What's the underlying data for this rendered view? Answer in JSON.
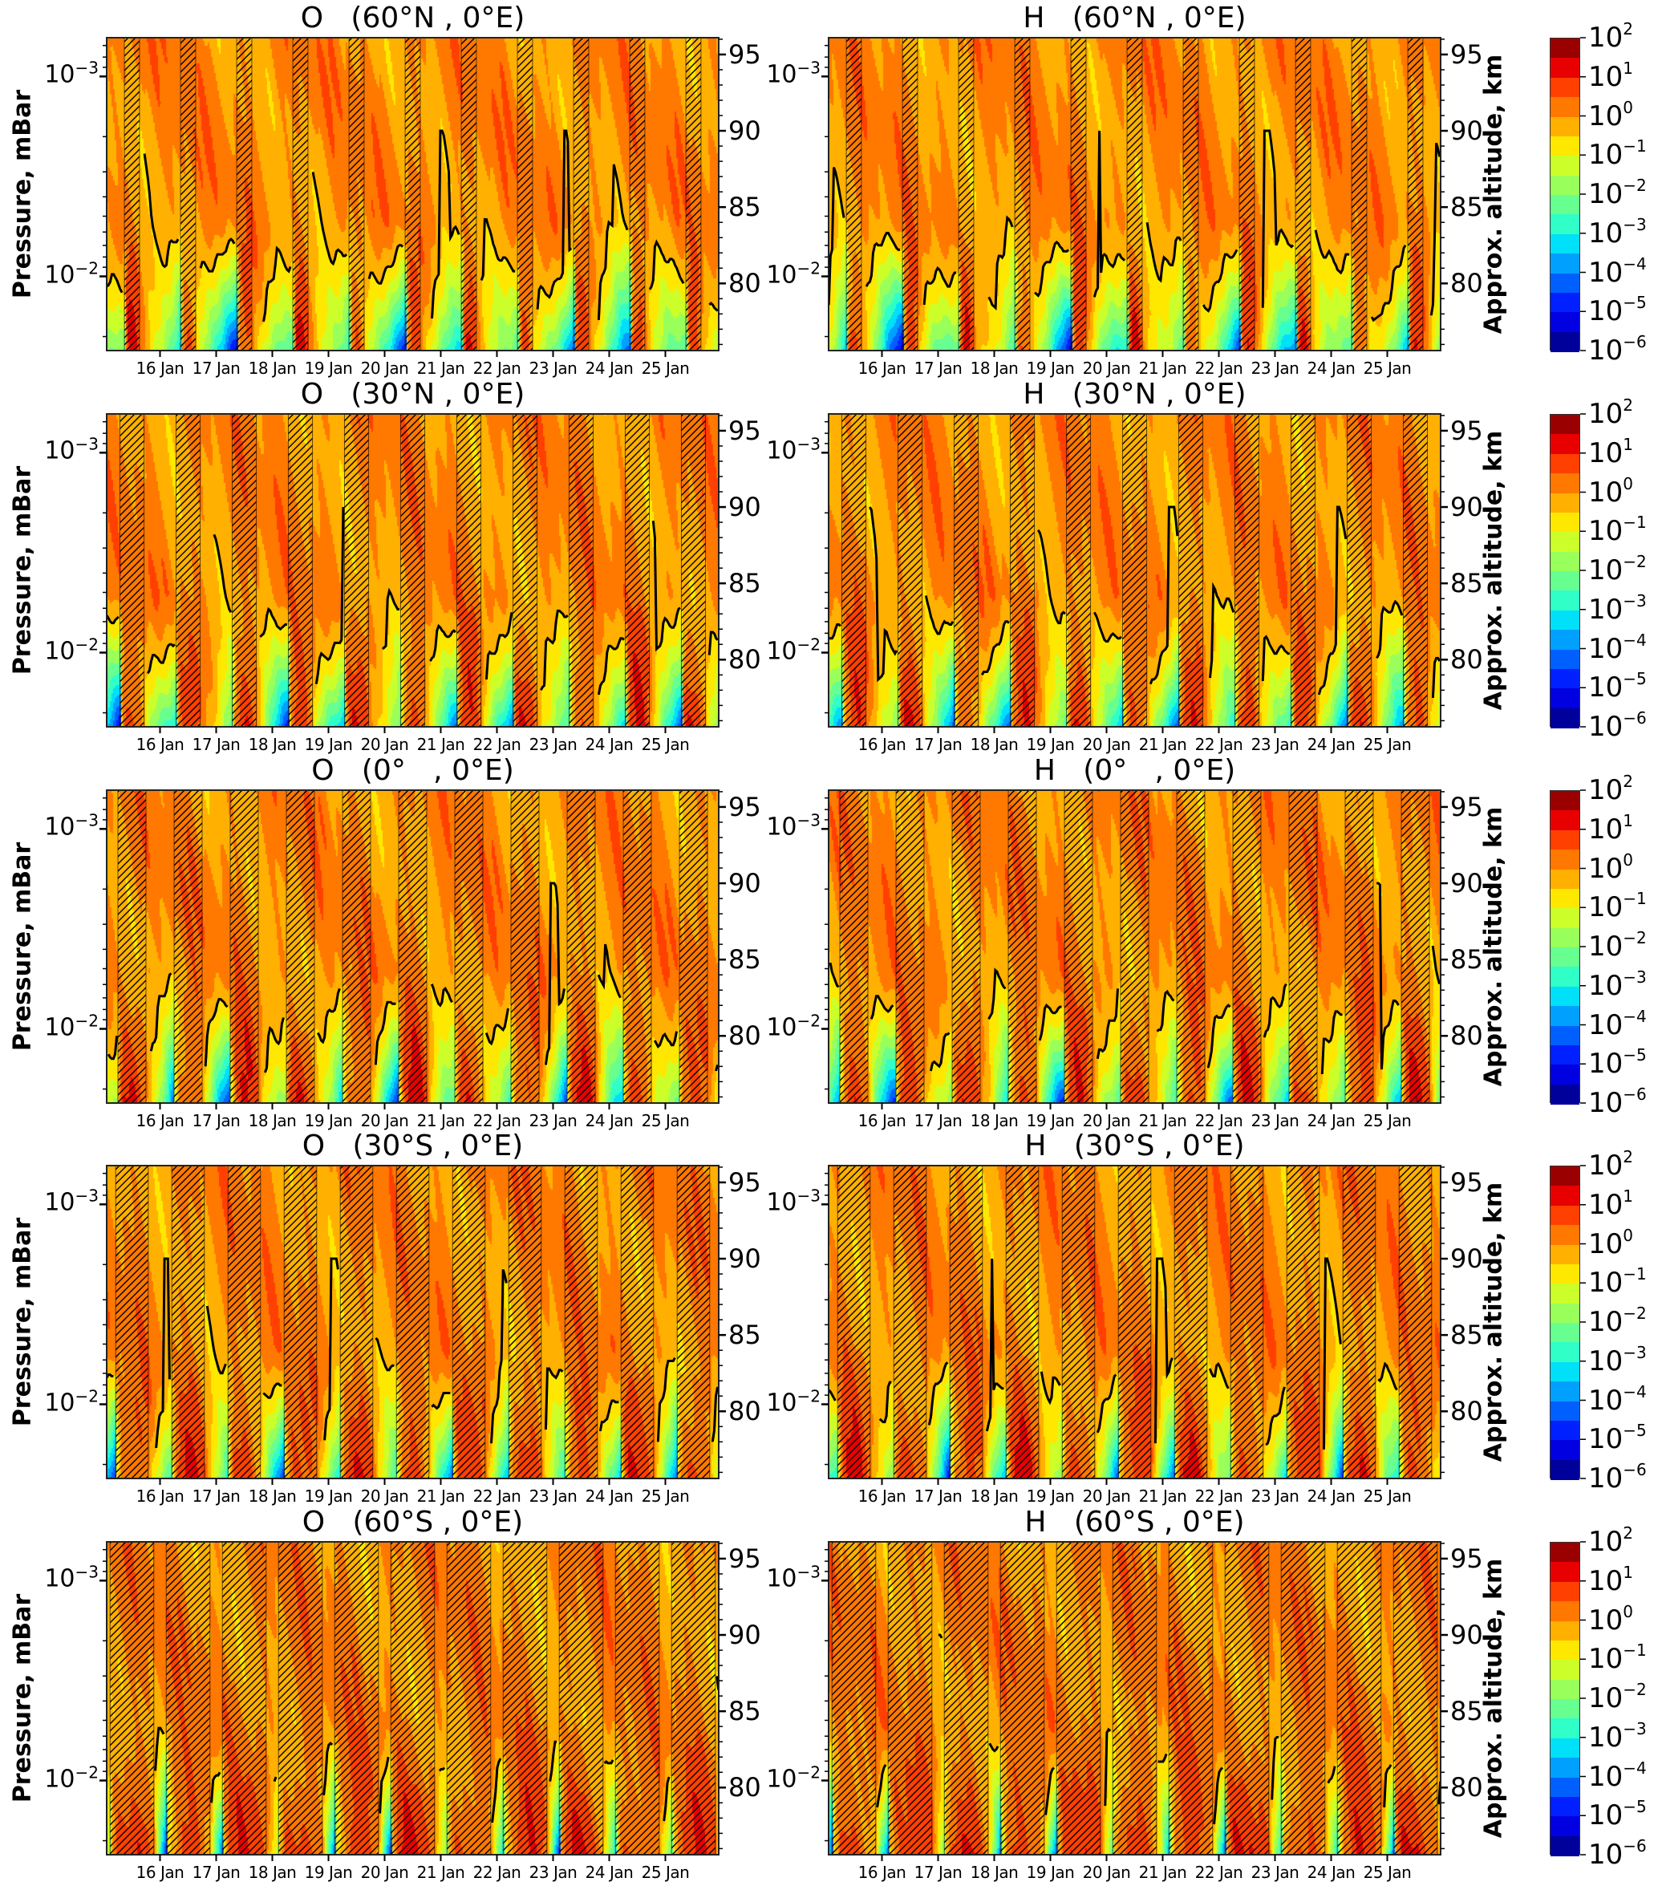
{
  "figure": {
    "y_left_label": "Pressure, mBar",
    "y_right_label": "Approx. altitude, km",
    "x_tick_labels": [
      "16 Jan",
      "17 Jan",
      "18 Jan",
      "19 Jan",
      "20 Jan",
      "21 Jan",
      "22 Jan",
      "23 Jan",
      "24 Jan",
      "25 Jan"
    ],
    "x_tick_days": [
      16,
      17,
      18,
      19,
      20,
      21,
      22,
      23,
      24,
      25
    ],
    "y_left_ticks": [
      {
        "base": "10",
        "exp": "−3",
        "value": 0.001
      },
      {
        "base": "10",
        "exp": "−2",
        "value": 0.01
      }
    ],
    "y_right_ticks": [
      {
        "label": "95",
        "value": 95
      },
      {
        "label": "90",
        "value": 90
      },
      {
        "label": "85",
        "value": 85
      },
      {
        "label": "80",
        "value": 80
      }
    ],
    "colorbar_ticks": [
      {
        "base": "10",
        "exp": "2"
      },
      {
        "base": "10",
        "exp": "1"
      },
      {
        "base": "10",
        "exp": "0"
      },
      {
        "base": "10",
        "exp": "−1"
      },
      {
        "base": "10",
        "exp": "−2"
      },
      {
        "base": "10",
        "exp": "−3"
      },
      {
        "base": "10",
        "exp": "−4"
      },
      {
        "base": "10",
        "exp": "−5"
      },
      {
        "base": "10",
        "exp": "−6"
      }
    ],
    "colorbar_colors_top_to_bottom": [
      "#9a0000",
      "#e80000",
      "#ff4000",
      "#ff7800",
      "#ffb000",
      "#ffe800",
      "#ccff2a",
      "#99ff5a",
      "#66ff90",
      "#30ffc8",
      "#00e0f8",
      "#00a0ff",
      "#0060ff",
      "#0020ff",
      "#0000e0",
      "#00009a"
    ],
    "colorbar_range_log10": [
      -6,
      2
    ],
    "hatch_color": "#000000",
    "contour_line_color": "#000000"
  },
  "chart_data": [
    {
      "type": "heatmap",
      "title": "O   (60°N , 0°E)",
      "species": "O",
      "hatched_daylight_utc_fraction": [
        0.365,
        0.635
      ],
      "xlim_day_of_january": [
        15.05,
        25.95
      ],
      "ylim_pressure_mbar": [
        0.00064,
        0.0235
      ],
      "ylim_altitude_km": [
        75.6,
        96.1
      ],
      "log_y": true
    },
    {
      "type": "heatmap",
      "title": "H   (60°N , 0°E)",
      "species": "H",
      "hatched_daylight_utc_fraction": [
        0.365,
        0.635
      ],
      "xlim_day_of_january": [
        15.05,
        25.95
      ],
      "ylim_pressure_mbar": [
        0.00064,
        0.0235
      ],
      "ylim_altitude_km": [
        75.6,
        96.1
      ],
      "log_y": true
    },
    {
      "type": "heatmap",
      "title": "O   (30°N , 0°E)",
      "species": "O",
      "hatched_daylight_utc_fraction": [
        0.285,
        0.715
      ],
      "xlim_day_of_january": [
        15.05,
        25.95
      ],
      "ylim_pressure_mbar": [
        0.00064,
        0.0235
      ],
      "ylim_altitude_km": [
        75.6,
        96.1
      ],
      "log_y": true
    },
    {
      "type": "heatmap",
      "title": "H   (30°N , 0°E)",
      "species": "H",
      "hatched_daylight_utc_fraction": [
        0.285,
        0.715
      ],
      "xlim_day_of_january": [
        15.05,
        25.95
      ],
      "ylim_pressure_mbar": [
        0.00064,
        0.0235
      ],
      "ylim_altitude_km": [
        75.6,
        96.1
      ],
      "log_y": true
    },
    {
      "type": "heatmap",
      "title": "O   (0°   , 0°E)",
      "species": "O",
      "hatched_daylight_utc_fraction": [
        0.25,
        0.75
      ],
      "xlim_day_of_january": [
        15.05,
        25.95
      ],
      "ylim_pressure_mbar": [
        0.00064,
        0.0235
      ],
      "ylim_altitude_km": [
        75.6,
        96.1
      ],
      "log_y": true
    },
    {
      "type": "heatmap",
      "title": "H   (0°   , 0°E)",
      "species": "H",
      "hatched_daylight_utc_fraction": [
        0.25,
        0.75
      ],
      "xlim_day_of_january": [
        15.05,
        25.95
      ],
      "ylim_pressure_mbar": [
        0.00064,
        0.0235
      ],
      "ylim_altitude_km": [
        75.6,
        96.1
      ],
      "log_y": true
    },
    {
      "type": "heatmap",
      "title": "O   (30°S , 0°E)",
      "species": "O",
      "hatched_daylight_utc_fraction": [
        0.21,
        0.79
      ],
      "xlim_day_of_january": [
        15.05,
        25.95
      ],
      "ylim_pressure_mbar": [
        0.00064,
        0.0235
      ],
      "ylim_altitude_km": [
        75.6,
        96.1
      ],
      "log_y": true
    },
    {
      "type": "heatmap",
      "title": "H   (30°S , 0°E)",
      "species": "H",
      "hatched_daylight_utc_fraction": [
        0.21,
        0.79
      ],
      "xlim_day_of_january": [
        15.05,
        25.95
      ],
      "ylim_pressure_mbar": [
        0.00064,
        0.0235
      ],
      "ylim_altitude_km": [
        75.6,
        96.1
      ],
      "log_y": true
    },
    {
      "type": "heatmap",
      "title": "O   (60°S , 0°E)",
      "species": "O",
      "hatched_daylight_utc_fraction": [
        0.11,
        0.89
      ],
      "xlim_day_of_january": [
        15.05,
        25.95
      ],
      "ylim_pressure_mbar": [
        0.00064,
        0.0235
      ],
      "ylim_altitude_km": [
        75.6,
        96.1
      ],
      "log_y": true
    },
    {
      "type": "heatmap",
      "title": "H   (60°S , 0°E)",
      "species": "H",
      "hatched_daylight_utc_fraction": [
        0.11,
        0.89
      ],
      "xlim_day_of_january": [
        15.05,
        25.95
      ],
      "ylim_pressure_mbar": [
        0.00064,
        0.0235
      ],
      "ylim_altitude_km": [
        75.6,
        96.1
      ],
      "log_y": true
    }
  ]
}
